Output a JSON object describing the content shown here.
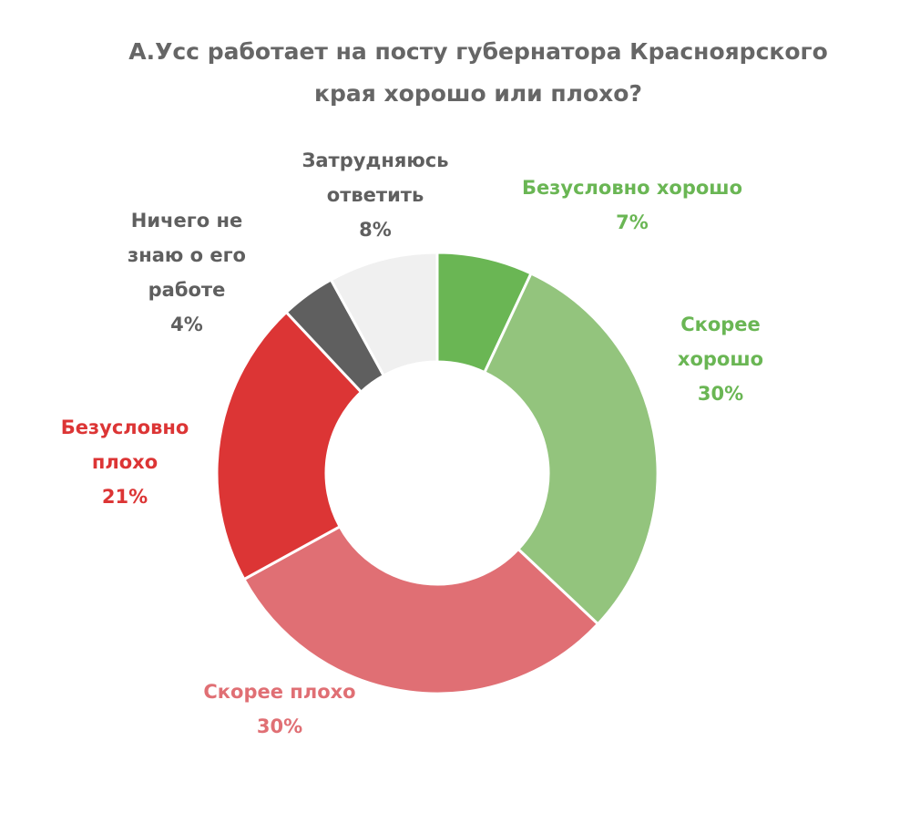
{
  "chart_data": {
    "type": "pie",
    "title_lines": [
      "А.Усс работает на посту губернатора Красноярского",
      "края хорошо или плохо?"
    ],
    "slices": [
      {
        "label_lines": [
          "Безусловно хорошо"
        ],
        "value": 7,
        "value_label": "7%",
        "color": "#6ab654",
        "label_color": "#6ab654"
      },
      {
        "label_lines": [
          "Скорее",
          "хорошо"
        ],
        "value": 30,
        "value_label": "30%",
        "color": "#93c47d",
        "label_color": "#6ab654"
      },
      {
        "label_lines": [
          "Скорее плохо"
        ],
        "value": 30,
        "value_label": "30%",
        "color": "#e06f74",
        "label_color": "#e06f74"
      },
      {
        "label_lines": [
          "Безусловно",
          "плохо"
        ],
        "value": 21,
        "value_label": "21%",
        "color": "#dc3535",
        "label_color": "#dc3535"
      },
      {
        "label_lines": [
          "Ничего не",
          "знаю о его",
          "работе"
        ],
        "value": 4,
        "value_label": "4%",
        "color": "#5f5f5f",
        "label_color": "#5f5f5f"
      },
      {
        "label_lines": [
          "Затрудняюсь",
          "ответить"
        ],
        "value": 8,
        "value_label": "8%",
        "color": "#f0f0f0",
        "label_color": "#5f5f5f"
      }
    ]
  }
}
